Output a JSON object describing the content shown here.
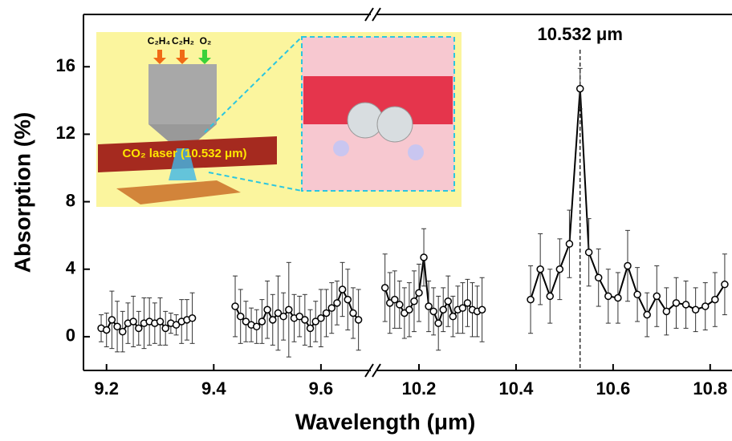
{
  "chart_data": {
    "type": "line",
    "xlabel": "Wavelength (μm)",
    "ylabel": "Absorption (%)",
    "ylim": [
      -2,
      19.1
    ],
    "yticks": [
      0,
      4,
      8,
      12,
      16
    ],
    "x_segments": [
      {
        "xlim": [
          9.157,
          9.693
        ],
        "xticks": [
          9.2,
          9.4,
          9.6
        ]
      },
      {
        "xlim": [
          10.114,
          10.845
        ],
        "xticks": [
          10.2,
          10.4,
          10.6,
          10.8
        ]
      }
    ],
    "annotation": {
      "text": "10.532 μm",
      "x": 10.532
    },
    "inset_labels": [
      "C₂H₄",
      "C₂H₂",
      "O₂",
      "CO₂ laser (10.532 μm)"
    ],
    "series": [
      {
        "color": "#000000",
        "x": [
          9.19,
          9.2,
          9.21,
          9.22,
          9.23,
          9.24,
          9.25,
          9.26,
          9.27,
          9.28,
          9.29,
          9.3,
          9.31,
          9.32,
          9.33,
          9.34,
          9.35,
          9.36
        ],
        "values": [
          0.5,
          0.4,
          1.0,
          0.6,
          0.3,
          0.8,
          0.9,
          0.5,
          0.8,
          0.9,
          0.8,
          0.9,
          0.5,
          0.8,
          0.7,
          0.9,
          1.0,
          1.1
        ],
        "errors": [
          0.8,
          1.0,
          1.7,
          1.5,
          1.2,
          1.2,
          1.5,
          1.0,
          1.5,
          1.4,
          1.2,
          1.4,
          1.0,
          0.6,
          0.6,
          1.3,
          1.2,
          1.5
        ]
      },
      {
        "color": "#000000",
        "x": [
          9.44,
          9.45,
          9.46,
          9.47,
          9.48,
          9.49,
          9.5,
          9.51,
          9.52,
          9.53,
          9.54,
          9.55,
          9.56,
          9.57,
          9.58,
          9.59,
          9.6,
          9.61,
          9.62,
          9.63,
          9.64,
          9.65,
          9.66,
          9.67
        ],
        "values": [
          1.8,
          1.2,
          0.9,
          0.7,
          0.6,
          0.9,
          1.6,
          1.0,
          1.4,
          1.2,
          1.6,
          1.1,
          1.2,
          1.0,
          0.5,
          0.9,
          1.1,
          1.4,
          1.7,
          2.0,
          2.8,
          2.2,
          1.4,
          1.0
        ],
        "errors": [
          1.8,
          1.6,
          1.2,
          1.0,
          1.0,
          1.3,
          1.7,
          1.5,
          2.2,
          1.4,
          2.8,
          1.4,
          1.2,
          1.5,
          1.1,
          1.2,
          1.7,
          1.4,
          1.5,
          1.3,
          1.6,
          1.8,
          1.5,
          1.8
        ]
      },
      {
        "color": "#000000",
        "x": [
          10.13,
          10.14,
          10.15,
          10.16,
          10.17,
          10.18,
          10.19,
          10.2,
          10.21,
          10.22,
          10.23,
          10.24,
          10.25,
          10.26,
          10.27,
          10.28,
          10.29,
          10.3,
          10.31,
          10.32,
          10.33
        ],
        "values": [
          2.9,
          2.0,
          2.2,
          1.9,
          1.4,
          1.6,
          2.1,
          2.6,
          4.7,
          1.8,
          1.5,
          0.8,
          1.6,
          2.1,
          1.2,
          1.6,
          1.7,
          2.0,
          1.6,
          1.5,
          1.6
        ],
        "errors": [
          2.0,
          1.8,
          1.7,
          1.4,
          1.5,
          1.6,
          1.8,
          1.7,
          1.7,
          1.5,
          1.4,
          1.6,
          1.3,
          1.5,
          1.2,
          1.4,
          1.5,
          1.4,
          1.6,
          1.5,
          1.9
        ]
      },
      {
        "color": "#000000",
        "x": [
          10.43,
          10.45,
          10.47,
          10.49,
          10.51,
          10.532,
          10.55,
          10.57,
          10.59,
          10.61,
          10.63,
          10.65,
          10.67,
          10.69,
          10.71,
          10.73,
          10.75,
          10.77,
          10.79,
          10.81,
          10.83
        ],
        "values": [
          2.2,
          4.0,
          2.4,
          4.0,
          5.5,
          14.7,
          5.0,
          3.5,
          2.4,
          2.3,
          4.2,
          2.5,
          1.3,
          2.4,
          1.5,
          2.0,
          1.9,
          1.6,
          1.8,
          2.2,
          3.1
        ],
        "errors": [
          2.0,
          2.1,
          1.6,
          1.8,
          2.0,
          1.2,
          2.0,
          1.7,
          1.6,
          1.5,
          2.1,
          1.6,
          1.3,
          1.8,
          1.4,
          1.5,
          1.4,
          1.3,
          1.4,
          1.6,
          1.8
        ]
      }
    ]
  }
}
